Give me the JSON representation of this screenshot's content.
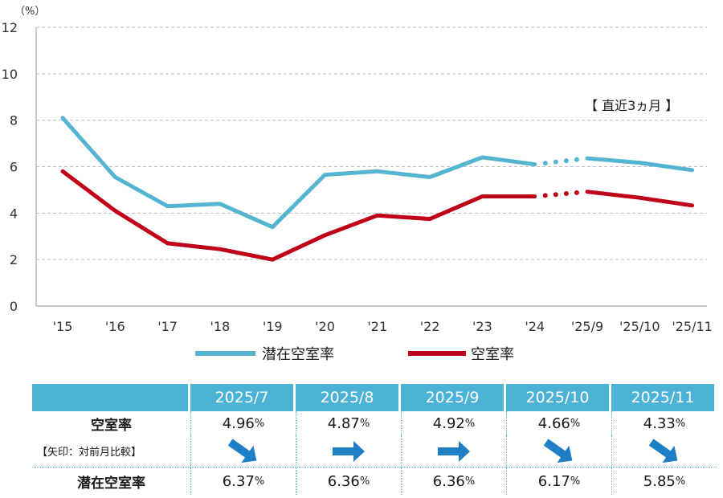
{
  "chart_data": {
    "type": "line",
    "unit_label": "（%）",
    "annotation": "【 直近3ヵ月 】",
    "categories": [
      "'15",
      "'16",
      "'17",
      "'18",
      "'19",
      "'20",
      "'21",
      "'22",
      "'23",
      "'24",
      "'25/9",
      "'25/10",
      "'25/11"
    ],
    "ylim": [
      0,
      12
    ],
    "yticks": [
      0,
      2,
      4,
      6,
      8,
      10,
      12
    ],
    "series": [
      {
        "name": "潜在空室率",
        "color": "#56b4d3",
        "values": [
          8.1,
          5.55,
          4.3,
          4.4,
          3.4,
          5.65,
          5.8,
          5.55,
          6.4,
          6.1,
          6.36,
          6.17,
          5.85
        ]
      },
      {
        "name": "空室率",
        "color": "#c00018",
        "values": [
          5.8,
          4.1,
          2.7,
          2.45,
          2.0,
          3.05,
          3.9,
          3.75,
          4.72,
          4.72,
          4.92,
          4.66,
          4.33
        ]
      }
    ]
  },
  "table": {
    "months": [
      "2025/7",
      "2025/8",
      "2025/9",
      "2025/10",
      "2025/11"
    ],
    "row1_label": "空室率",
    "row1_values": [
      "4.96",
      "4.87",
      "4.92",
      "4.66",
      "4.33"
    ],
    "arrow_label": "【矢印：対前月比較】",
    "arrows": [
      "down",
      "flat",
      "flat",
      "down",
      "down"
    ],
    "row2_label": "潜在空室率",
    "row2_values": [
      "6.37",
      "6.36",
      "6.36",
      "6.17",
      "5.85"
    ],
    "pct": "%",
    "arrow_color": "#1f7fc6"
  }
}
